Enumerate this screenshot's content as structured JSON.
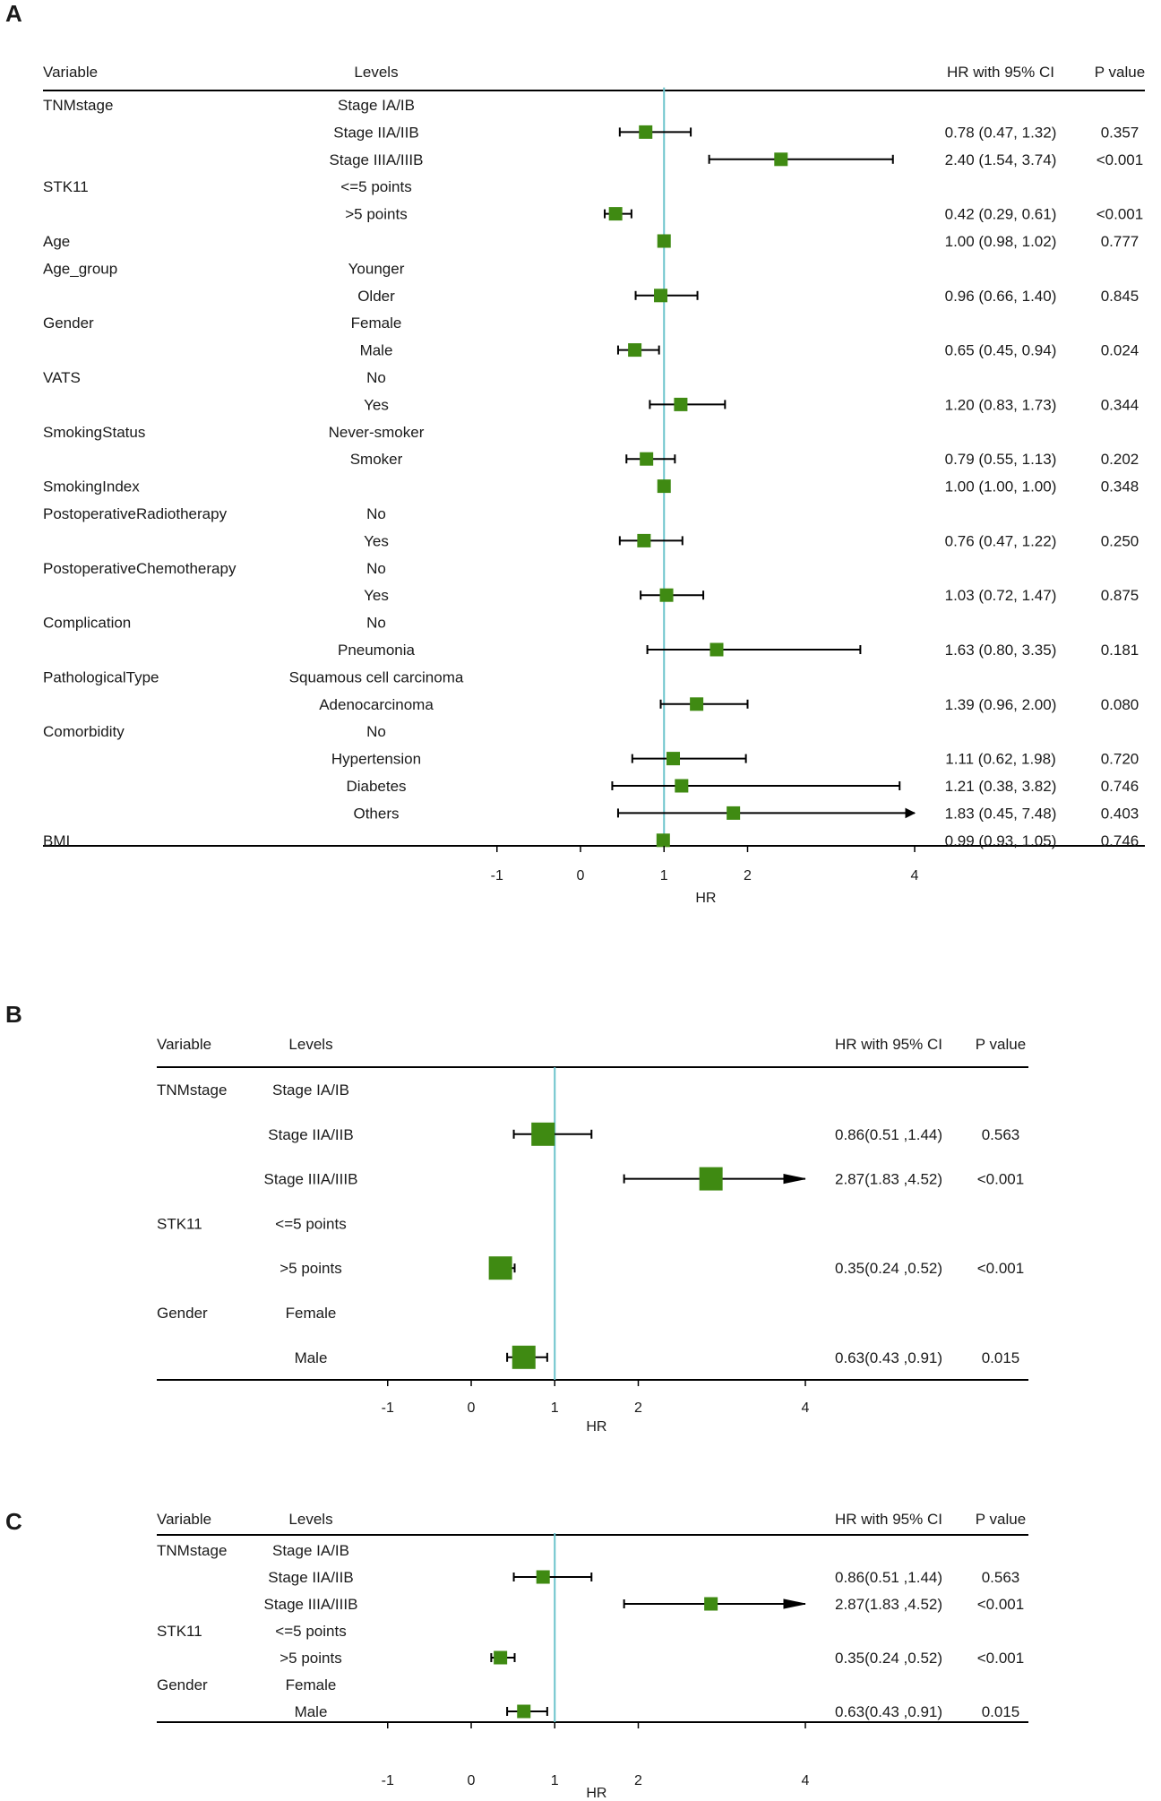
{
  "colors": {
    "box": "#3f8a12",
    "ref_line": "#6cc4cc",
    "text": "#1a1a1a",
    "rule": "#000000"
  },
  "chart_data": [
    {
      "panel": "A",
      "type": "forest",
      "headers": {
        "variable": "Variable",
        "levels": "Levels",
        "hr_ci": "HR with 95% CI",
        "p": "P value"
      },
      "x_ticks": [
        "-1",
        "0",
        "1",
        "2",
        "4"
      ],
      "x_tick_values": [
        -1,
        0,
        1,
        2,
        4
      ],
      "xlabel": "HR",
      "reference": 1,
      "rows": [
        {
          "variable": "TNMstage",
          "level": "Stage IA/IB",
          "hr_text": "",
          "p": ""
        },
        {
          "variable": "",
          "level": "Stage IIA/IIB",
          "hr": 0.78,
          "lo": 0.47,
          "hi": 1.32,
          "hr_text": "0.78 (0.47, 1.32)",
          "p": "0.357"
        },
        {
          "variable": "",
          "level": "Stage IIIA/IIIB",
          "hr": 2.4,
          "lo": 1.54,
          "hi": 3.74,
          "hr_text": "2.40 (1.54, 3.74)",
          "p": "<0.001"
        },
        {
          "variable": "STK11",
          "level": "<=5 points",
          "hr_text": "",
          "p": ""
        },
        {
          "variable": "",
          "level": ">5 points",
          "hr": 0.42,
          "lo": 0.29,
          "hi": 0.61,
          "hr_text": "0.42 (0.29, 0.61)",
          "p": "<0.001"
        },
        {
          "variable": "Age",
          "level": "",
          "hr": 1.0,
          "lo": 0.98,
          "hi": 1.02,
          "hr_text": "1.00 (0.98, 1.02)",
          "p": "0.777"
        },
        {
          "variable": "Age_group",
          "level": "Younger",
          "hr_text": "",
          "p": ""
        },
        {
          "variable": "",
          "level": "Older",
          "hr": 0.96,
          "lo": 0.66,
          "hi": 1.4,
          "hr_text": "0.96 (0.66, 1.40)",
          "p": "0.845"
        },
        {
          "variable": "Gender",
          "level": "Female",
          "hr_text": "",
          "p": ""
        },
        {
          "variable": "",
          "level": "Male",
          "hr": 0.65,
          "lo": 0.45,
          "hi": 0.94,
          "hr_text": "0.65 (0.45, 0.94)",
          "p": "0.024"
        },
        {
          "variable": "VATS",
          "level": "No",
          "hr_text": "",
          "p": ""
        },
        {
          "variable": "",
          "level": "Yes",
          "hr": 1.2,
          "lo": 0.83,
          "hi": 1.73,
          "hr_text": "1.20 (0.83, 1.73)",
          "p": "0.344"
        },
        {
          "variable": "SmokingStatus",
          "level": "Never-smoker",
          "hr_text": "",
          "p": ""
        },
        {
          "variable": "",
          "level": "Smoker",
          "hr": 0.79,
          "lo": 0.55,
          "hi": 1.13,
          "hr_text": "0.79 (0.55, 1.13)",
          "p": "0.202"
        },
        {
          "variable": "SmokingIndex",
          "level": "",
          "hr": 1.0,
          "lo": 1.0,
          "hi": 1.0,
          "hr_text": "1.00 (1.00, 1.00)",
          "p": "0.348"
        },
        {
          "variable": "PostoperativeRadiotherapy",
          "level": "No",
          "hr_text": "",
          "p": ""
        },
        {
          "variable": "",
          "level": "Yes",
          "hr": 0.76,
          "lo": 0.47,
          "hi": 1.22,
          "hr_text": "0.76 (0.47, 1.22)",
          "p": "0.250"
        },
        {
          "variable": "PostoperativeChemotherapy",
          "level": "No",
          "hr_text": "",
          "p": ""
        },
        {
          "variable": "",
          "level": "Yes",
          "hr": 1.03,
          "lo": 0.72,
          "hi": 1.47,
          "hr_text": "1.03 (0.72, 1.47)",
          "p": "0.875"
        },
        {
          "variable": "Complication",
          "level": "No",
          "hr_text": "",
          "p": ""
        },
        {
          "variable": "",
          "level": "Pneumonia",
          "hr": 1.63,
          "lo": 0.8,
          "hi": 3.35,
          "hr_text": "1.63 (0.80, 3.35)",
          "p": "0.181"
        },
        {
          "variable": "PathologicalType",
          "level": "Squamous cell carcinoma",
          "hr_text": "",
          "p": ""
        },
        {
          "variable": "",
          "level": "Adenocarcinoma",
          "hr": 1.39,
          "lo": 0.96,
          "hi": 2.0,
          "hr_text": "1.39 (0.96, 2.00)",
          "p": "0.080"
        },
        {
          "variable": "Comorbidity",
          "level": "No",
          "hr_text": "",
          "p": ""
        },
        {
          "variable": "",
          "level": "Hypertension",
          "hr": 1.11,
          "lo": 0.62,
          "hi": 1.98,
          "hr_text": "1.11 (0.62, 1.98)",
          "p": "0.720"
        },
        {
          "variable": "",
          "level": "Diabetes",
          "hr": 1.21,
          "lo": 0.38,
          "hi": 3.82,
          "hr_text": "1.21 (0.38, 3.82)",
          "p": "0.746"
        },
        {
          "variable": "",
          "level": "Others",
          "hr": 1.83,
          "lo": 0.45,
          "hi": 7.48,
          "hr_text": "1.83 (0.45, 7.48)",
          "p": "0.403"
        },
        {
          "variable": "BMI",
          "level": "",
          "hr": 0.99,
          "lo": 0.93,
          "hi": 1.05,
          "hr_text": "0.99 (0.93, 1.05)",
          "p": "0.746"
        }
      ]
    },
    {
      "panel": "B",
      "type": "forest",
      "headers": {
        "variable": "Variable",
        "levels": "Levels",
        "hr_ci": "HR with 95% CI",
        "p": "P value"
      },
      "x_ticks": [
        "-1",
        "0",
        "1",
        "2",
        "4"
      ],
      "x_tick_values": [
        -1,
        0,
        1,
        2,
        4
      ],
      "xlabel": "HR",
      "reference": 1,
      "rows": [
        {
          "variable": "TNMstage",
          "level": "Stage IA/IB",
          "hr_text": "",
          "p": ""
        },
        {
          "variable": "",
          "level": "Stage IIA/IIB",
          "hr": 0.86,
          "lo": 0.51,
          "hi": 1.44,
          "hr_text": "0.86(0.51 ,1.44)",
          "p": "0.563"
        },
        {
          "variable": "",
          "level": "Stage IIIA/IIIB",
          "hr": 2.87,
          "lo": 1.83,
          "hi": 4.52,
          "hr_text": "2.87(1.83 ,4.52)",
          "p": "<0.001"
        },
        {
          "variable": "STK11",
          "level": "<=5 points",
          "hr_text": "",
          "p": ""
        },
        {
          "variable": "",
          "level": ">5 points",
          "hr": 0.35,
          "lo": 0.24,
          "hi": 0.52,
          "hr_text": "0.35(0.24 ,0.52)",
          "p": "<0.001"
        },
        {
          "variable": "Gender",
          "level": "Female",
          "hr_text": "",
          "p": ""
        },
        {
          "variable": "",
          "level": "Male",
          "hr": 0.63,
          "lo": 0.43,
          "hi": 0.91,
          "hr_text": "0.63(0.43 ,0.91)",
          "p": "0.015"
        }
      ]
    },
    {
      "panel": "C",
      "type": "forest",
      "headers": {
        "variable": "Variable",
        "levels": "Levels",
        "hr_ci": "HR with 95% CI",
        "p": "P value"
      },
      "x_ticks": [
        "-1",
        "0",
        "1",
        "2",
        "4"
      ],
      "x_tick_values": [
        -1,
        0,
        1,
        2,
        4
      ],
      "xlabel": "HR",
      "reference": 1,
      "rows": [
        {
          "variable": "TNMstage",
          "level": "Stage IA/IB",
          "hr_text": "",
          "p": ""
        },
        {
          "variable": "",
          "level": "Stage IIA/IIB",
          "hr": 0.86,
          "lo": 0.51,
          "hi": 1.44,
          "hr_text": "0.86(0.51 ,1.44)",
          "p": "0.563"
        },
        {
          "variable": "",
          "level": "Stage IIIA/IIIB",
          "hr": 2.87,
          "lo": 1.83,
          "hi": 4.52,
          "hr_text": "2.87(1.83 ,4.52)",
          "p": "<0.001"
        },
        {
          "variable": "STK11",
          "level": "<=5 points",
          "hr_text": "",
          "p": ""
        },
        {
          "variable": "",
          "level": ">5 points",
          "hr": 0.35,
          "lo": 0.24,
          "hi": 0.52,
          "hr_text": "0.35(0.24 ,0.52)",
          "p": "<0.001"
        },
        {
          "variable": "Gender",
          "level": "Female",
          "hr_text": "",
          "p": ""
        },
        {
          "variable": "",
          "level": "Male",
          "hr": 0.63,
          "lo": 0.43,
          "hi": 0.91,
          "hr_text": "0.63(0.43 ,0.91)",
          "p": "0.015"
        }
      ]
    }
  ]
}
